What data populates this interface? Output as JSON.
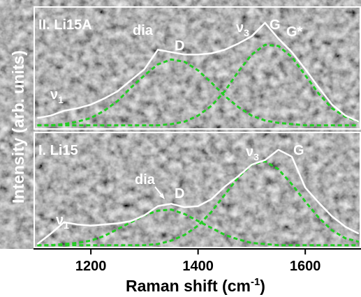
{
  "ylabel": "Intensity (arb. units)",
  "xlabel": {
    "text": "Raman shift (cm",
    "sup": "-1",
    "end": ")"
  },
  "chart_data": [
    {
      "type": "line",
      "xlim": [
        1093,
        1704
      ],
      "ylim": [
        0,
        100
      ],
      "x": [
        1100,
        1125,
        1150,
        1175,
        1200,
        1225,
        1250,
        1275,
        1300,
        1325,
        1350,
        1375,
        1400,
        1425,
        1450,
        1475,
        1500,
        1525,
        1550,
        1575,
        1600,
        1625,
        1650,
        1675,
        1700
      ],
      "annotations": [
        {
          "text": "II. Li15A"
        },
        {
          "text": "dia"
        },
        {
          "text": "D"
        },
        {
          "text": "ν",
          "sub": "3"
        },
        {
          "text": "G"
        },
        {
          "text": "G*"
        },
        {
          "text": "ν",
          "sub": "1"
        }
      ],
      "series": [
        {
          "color": "#ffffff",
          "style": "solid",
          "values": [
            9,
            11,
            15,
            17,
            20,
            25,
            31,
            40,
            49,
            65,
            63,
            61,
            61,
            62,
            65,
            70,
            76,
            87,
            74,
            63,
            49,
            34,
            20,
            11,
            6
          ]
        },
        {
          "color": "#22cc22",
          "style": "dashed",
          "values": [
            3,
            3,
            4,
            6,
            9,
            15,
            23,
            34,
            44,
            53,
            57,
            55,
            48,
            38,
            27,
            18,
            11,
            7,
            5,
            4,
            3,
            3,
            3,
            3,
            3
          ]
        },
        {
          "color": "#22cc22",
          "style": "dashed",
          "values": [
            3,
            3,
            3,
            3,
            3,
            3,
            3,
            3,
            3,
            3,
            4,
            6,
            11,
            19,
            31,
            47,
            61,
            69,
            68,
            59,
            44,
            29,
            17,
            10,
            6
          ]
        }
      ]
    },
    {
      "type": "line",
      "xlim": [
        1093,
        1704
      ],
      "ylim": [
        0,
        100
      ],
      "xticks": [
        1200,
        1400,
        1600
      ],
      "x": [
        1100,
        1125,
        1150,
        1175,
        1200,
        1225,
        1250,
        1275,
        1300,
        1325,
        1350,
        1375,
        1400,
        1425,
        1450,
        1475,
        1500,
        1525,
        1550,
        1575,
        1600,
        1625,
        1650,
        1675,
        1700
      ],
      "annotations": [
        {
          "text": "I. Li15"
        },
        {
          "text": "dia"
        },
        {
          "text": "D"
        },
        {
          "text": "ν",
          "sub": "3"
        },
        {
          "text": "G"
        },
        {
          "text": "ν",
          "sub": "1"
        }
      ],
      "series": [
        {
          "color": "#ffffff",
          "style": "solid",
          "values": [
            3,
            12,
            22,
            20,
            19,
            20,
            21,
            23,
            28,
            36,
            38,
            35,
            36,
            42,
            53,
            62,
            72,
            76,
            85,
            79,
            52,
            39,
            27,
            18,
            12
          ]
        },
        {
          "color": "#22cc22",
          "style": "dashed",
          "values": [
            2,
            2,
            3,
            4,
            6,
            10,
            16,
            22,
            28,
            32,
            33,
            29,
            23,
            17,
            11,
            7,
            4,
            3,
            2,
            2,
            2,
            2,
            2,
            2,
            2
          ]
        },
        {
          "color": "#22cc22",
          "style": "dashed",
          "values": [
            2,
            2,
            2,
            2,
            2,
            2,
            2,
            2,
            2,
            3,
            6,
            11,
            19,
            31,
            46,
            61,
            72,
            75,
            68,
            55,
            40,
            26,
            15,
            8,
            5
          ]
        }
      ]
    }
  ]
}
